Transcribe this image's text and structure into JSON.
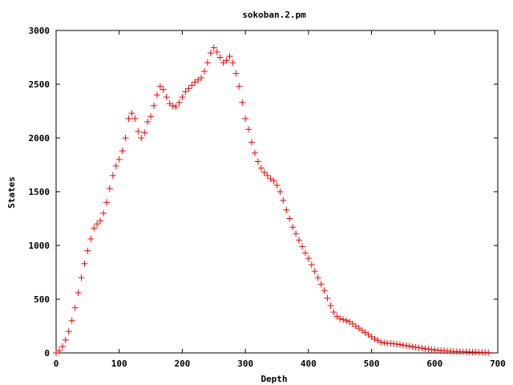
{
  "chart_data": {
    "type": "scatter",
    "title": "sokoban.2.pm",
    "xlabel": "Depth",
    "ylabel": "States",
    "xlim": [
      0,
      700
    ],
    "ylim": [
      0,
      3000
    ],
    "xticks": [
      "0",
      "100",
      "200",
      "300",
      "400",
      "500",
      "600",
      "700"
    ],
    "yticks": [
      "0",
      "500",
      "1000",
      "1500",
      "2000",
      "2500",
      "3000"
    ],
    "grid": false,
    "legend": "none",
    "marker": "plus",
    "color": "#ff0000",
    "series": [
      {
        "x": [
          0,
          5,
          10,
          15,
          20,
          25,
          30,
          35,
          40,
          45,
          50,
          55,
          60,
          65,
          70,
          75,
          80,
          85,
          90,
          95,
          100,
          105,
          110,
          115,
          120,
          125,
          130,
          135,
          140,
          145,
          150,
          155,
          160,
          165,
          170,
          175,
          180,
          185,
          190,
          195,
          200,
          205,
          210,
          215,
          220,
          225,
          230,
          235,
          240,
          245,
          250,
          255,
          260,
          265,
          270,
          275,
          280,
          285,
          290,
          295,
          300,
          305,
          310,
          315,
          320,
          325,
          330,
          335,
          340,
          345,
          350,
          355,
          360,
          365,
          370,
          375,
          380,
          385,
          390,
          395,
          400,
          405,
          410,
          415,
          420,
          425,
          430,
          435,
          440,
          445,
          450,
          455,
          460,
          465,
          470,
          475,
          480,
          485,
          490,
          495,
          500,
          505,
          510,
          515,
          520,
          525,
          530,
          535,
          540,
          545,
          550,
          555,
          560,
          565,
          570,
          575,
          580,
          585,
          590,
          595,
          600,
          605,
          610,
          615,
          620,
          625,
          630,
          635,
          640,
          645,
          650,
          655,
          660,
          665,
          670,
          675,
          680,
          685
        ],
        "y": [
          0,
          20,
          60,
          120,
          200,
          300,
          420,
          560,
          700,
          830,
          950,
          1060,
          1160,
          1200,
          1230,
          1300,
          1400,
          1530,
          1650,
          1740,
          1800,
          1880,
          2000,
          2180,
          2230,
          2180,
          2060,
          2000,
          2050,
          2150,
          2200,
          2300,
          2400,
          2480,
          2450,
          2380,
          2320,
          2300,
          2290,
          2330,
          2380,
          2430,
          2460,
          2490,
          2520,
          2540,
          2560,
          2620,
          2700,
          2790,
          2840,
          2800,
          2750,
          2700,
          2720,
          2760,
          2700,
          2600,
          2480,
          2330,
          2180,
          2080,
          1960,
          1860,
          1780,
          1720,
          1680,
          1650,
          1620,
          1600,
          1560,
          1500,
          1420,
          1330,
          1250,
          1170,
          1110,
          1050,
          990,
          930,
          880,
          820,
          760,
          700,
          640,
          580,
          510,
          440,
          380,
          340,
          320,
          310,
          300,
          290,
          270,
          250,
          230,
          210,
          190,
          170,
          150,
          130,
          115,
          100,
          95,
          90,
          88,
          85,
          82,
          78,
          72,
          68,
          64,
          58,
          52,
          48,
          45,
          40,
          36,
          32,
          28,
          25,
          22,
          20,
          18,
          16,
          14,
          13,
          12,
          11,
          10,
          9,
          8,
          7,
          6,
          5,
          4,
          3
        ]
      }
    ]
  }
}
